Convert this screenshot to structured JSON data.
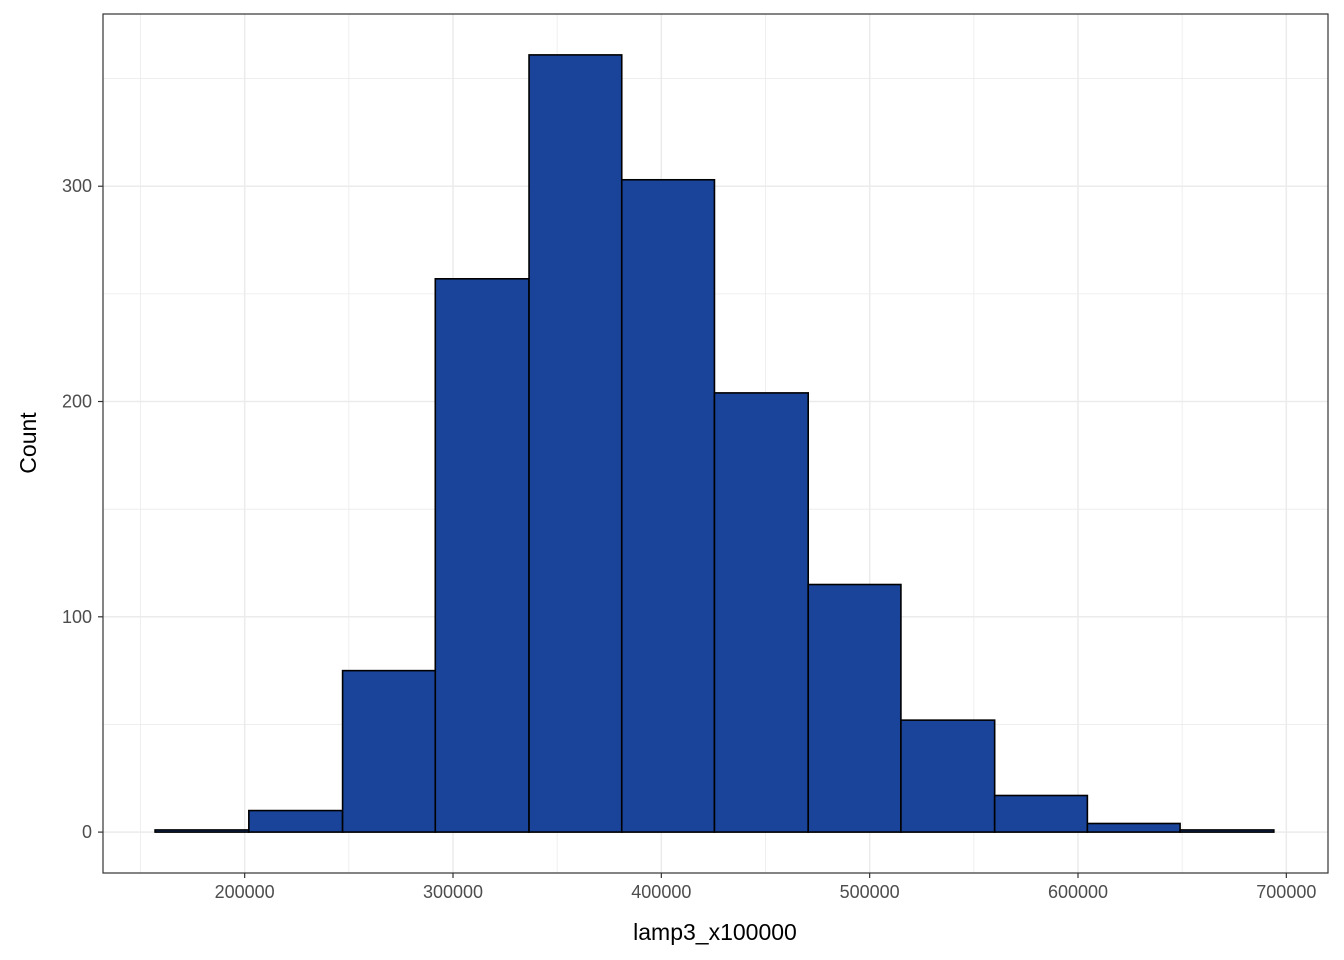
{
  "chart_data": {
    "type": "bar",
    "subtype": "histogram",
    "xlabel": "lamp3_x100000",
    "ylabel": "Count",
    "xlim": [
      132000,
      720000
    ],
    "ylim": [
      -19,
      380
    ],
    "x_ticks": [
      200000,
      300000,
      400000,
      500000,
      600000,
      700000
    ],
    "x_tick_labels": [
      "200000",
      "300000",
      "400000",
      "500000",
      "600000",
      "700000"
    ],
    "x_minor_ticks": [
      150000,
      250000,
      350000,
      450000,
      550000,
      650000
    ],
    "y_ticks": [
      0,
      100,
      200,
      300
    ],
    "y_tick_labels": [
      "0",
      "100",
      "200",
      "300"
    ],
    "y_minor_ticks": [
      50,
      150,
      250,
      350
    ],
    "grid": true,
    "theme": "bw",
    "bins": [
      {
        "xmin": 157000,
        "xmax": 202000,
        "count": 1
      },
      {
        "xmin": 202000,
        "xmax": 247000,
        "count": 10
      },
      {
        "xmin": 247000,
        "xmax": 291500,
        "count": 75
      },
      {
        "xmin": 291500,
        "xmax": 336500,
        "count": 257
      },
      {
        "xmin": 336500,
        "xmax": 381000,
        "count": 361
      },
      {
        "xmin": 381000,
        "xmax": 425500,
        "count": 303
      },
      {
        "xmin": 425500,
        "xmax": 470500,
        "count": 204
      },
      {
        "xmin": 470500,
        "xmax": 515000,
        "count": 115
      },
      {
        "xmin": 515000,
        "xmax": 560000,
        "count": 52
      },
      {
        "xmin": 560000,
        "xmax": 604500,
        "count": 17
      },
      {
        "xmin": 604500,
        "xmax": 649000,
        "count": 4
      },
      {
        "xmin": 649000,
        "xmax": 694000,
        "count": 1
      }
    ],
    "colors": {
      "fill": "#1a4499",
      "outline": "#000000",
      "grid": "#ebebeb",
      "panel_border": "#333333",
      "tick_text": "#4d4d4d"
    }
  }
}
